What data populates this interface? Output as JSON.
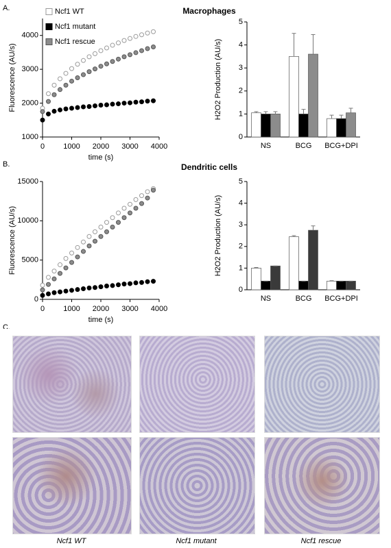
{
  "panels": [
    {
      "label": "A.",
      "title": "Macrophages"
    },
    {
      "label": "B.",
      "title": "Dendritic cells"
    },
    {
      "label": "C."
    }
  ],
  "chart_data": [
    {
      "type": "scatter",
      "xlabel": "time (s)",
      "ylabel": "Fluorescence (AU/s)",
      "x": [
        0,
        200,
        400,
        600,
        800,
        1000,
        1200,
        1400,
        1600,
        1800,
        2000,
        2200,
        2400,
        2600,
        2800,
        3000,
        3200,
        3400,
        3600,
        3800
      ],
      "xlim": [
        0,
        4000
      ],
      "xticks": [
        0,
        1000,
        2000,
        3000,
        4000
      ],
      "ylim": [
        1000,
        4500
      ],
      "yticks": [
        1000,
        2000,
        3000,
        4000
      ],
      "legend": "upper left",
      "series": [
        {
          "name": "Ncf1 WT",
          "color": "#ffffff",
          "edgecolor": "#9a9a9a",
          "values": [
            1850,
            2280,
            2530,
            2720,
            2880,
            3020,
            3150,
            3260,
            3370,
            3460,
            3550,
            3630,
            3710,
            3780,
            3850,
            3910,
            3970,
            4020,
            4070,
            4110
          ]
        },
        {
          "name": "Ncf1 mutant",
          "color": "#000000",
          "edgecolor": "#000000",
          "values": [
            1500,
            1680,
            1760,
            1800,
            1830,
            1850,
            1870,
            1890,
            1900,
            1920,
            1940,
            1950,
            1970,
            1980,
            2000,
            2010,
            2030,
            2040,
            2060,
            2070
          ]
        },
        {
          "name": "Ncf1 rescue",
          "color": "#8c8c8c",
          "edgecolor": "#555555",
          "values": [
            1750,
            2050,
            2250,
            2400,
            2530,
            2650,
            2750,
            2840,
            2930,
            3010,
            3090,
            3160,
            3230,
            3300,
            3370,
            3430,
            3490,
            3550,
            3610,
            3660
          ]
        }
      ]
    },
    {
      "type": "bar",
      "ylabel": "H2O2 Production (AU/s)",
      "categories": [
        "NS",
        "BCG",
        "BCG+DPI"
      ],
      "ylim": [
        0,
        5
      ],
      "yticks": [
        0,
        1,
        2,
        3,
        4,
        5
      ],
      "series": [
        {
          "color": "#ffffff",
          "values": [
            1.05,
            3.5,
            0.8
          ],
          "errors": [
            0.05,
            1.0,
            0.15
          ]
        },
        {
          "color": "#000000",
          "values": [
            1.0,
            1.0,
            0.8
          ],
          "errors": [
            0.1,
            0.2,
            0.15
          ]
        },
        {
          "color": "#8c8c8c",
          "values": [
            1.0,
            3.6,
            1.05
          ],
          "errors": [
            0.1,
            0.85,
            0.2
          ]
        }
      ]
    },
    {
      "type": "scatter",
      "xlabel": "time (s)",
      "ylabel": "Fluorescence (AU/s)",
      "x": [
        0,
        200,
        400,
        600,
        800,
        1000,
        1200,
        1400,
        1600,
        1800,
        2000,
        2200,
        2400,
        2600,
        2800,
        3000,
        3200,
        3400,
        3600,
        3800
      ],
      "xlim": [
        0,
        4000
      ],
      "xticks": [
        0,
        1000,
        2000,
        3000,
        4000
      ],
      "ylim": [
        0,
        15000
      ],
      "yticks": [
        0,
        5000,
        10000,
        15000
      ],
      "series": [
        {
          "color": "#ffffff",
          "edgecolor": "#9a9a9a",
          "values": [
            1800,
            2800,
            3600,
            4400,
            5200,
            5900,
            6600,
            7300,
            8000,
            8600,
            9200,
            9800,
            10400,
            11000,
            11600,
            12100,
            12700,
            13200,
            13700,
            14100
          ]
        },
        {
          "color": "#000000",
          "edgecolor": "#000000",
          "values": [
            500,
            700,
            850,
            950,
            1050,
            1150,
            1250,
            1350,
            1450,
            1500,
            1600,
            1700,
            1750,
            1850,
            1950,
            2000,
            2100,
            2150,
            2250,
            2300
          ]
        },
        {
          "color": "#8c8c8c",
          "edgecolor": "#555555",
          "values": [
            1200,
            1900,
            2600,
            3300,
            4000,
            4700,
            5400,
            6100,
            6800,
            7400,
            8000,
            8600,
            9200,
            9800,
            10400,
            11000,
            11600,
            12200,
            12900,
            13900
          ]
        }
      ]
    },
    {
      "type": "bar",
      "ylabel": "H2O2 Production (AU/s)",
      "categories": [
        "NS",
        "BCG",
        "BCG+DPI"
      ],
      "ylim": [
        0,
        5
      ],
      "yticks": [
        0,
        1,
        2,
        3,
        4,
        5
      ],
      "series": [
        {
          "color": "#ffffff",
          "values": [
            1.0,
            2.45,
            0.4
          ],
          "errors": [
            0.03,
            0.05,
            0.02
          ]
        },
        {
          "color": "#000000",
          "values": [
            0.4,
            0.4,
            0.4
          ],
          "errors": [
            0,
            0,
            0
          ]
        },
        {
          "color": "#3a3a3a",
          "values": [
            1.1,
            2.75,
            0.4
          ],
          "errors": [
            0,
            0.2,
            0
          ]
        }
      ]
    }
  ],
  "images": {
    "captions": [
      "Ncf1 WT",
      "Ncf1 mutant",
      "Ncf1 rescue"
    ]
  }
}
